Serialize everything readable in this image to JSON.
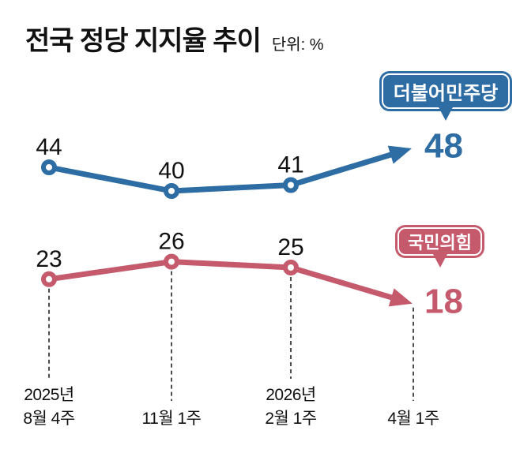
{
  "header": {
    "title": "전국 정당 지지율 추이",
    "unit_label": "단위: %"
  },
  "bubbles": {
    "democratic": {
      "label": "더불어민주당"
    },
    "ppp": {
      "label": "국민의힘"
    }
  },
  "xaxis": {
    "labels": [
      {
        "line1": "2025년",
        "line2": "8월 4주"
      },
      {
        "line1": "",
        "line2": "11월 1주"
      },
      {
        "line1": "2026년",
        "line2": "2월 1주"
      },
      {
        "line1": "",
        "line2": "4월 1주"
      }
    ]
  },
  "chart_data": {
    "type": "line",
    "title": "전국 정당 지지율 추이",
    "unit": "%",
    "categories": [
      "2025년 8월 4주",
      "11월 1주",
      "2026년 2월 1주",
      "4월 1주"
    ],
    "series": [
      {
        "name": "더불어민주당",
        "color": "#2e6da4",
        "values": [
          44,
          40,
          41,
          48
        ]
      },
      {
        "name": "국민의힘",
        "color": "#c55a6d",
        "values": [
          23,
          26,
          25,
          18
        ]
      }
    ],
    "ylim": [
      0,
      60
    ],
    "grid": false,
    "legend_position": "inline-bubbles",
    "annotations": [
      "마지막 값은 화살표와 큰 숫자로 강조"
    ]
  }
}
